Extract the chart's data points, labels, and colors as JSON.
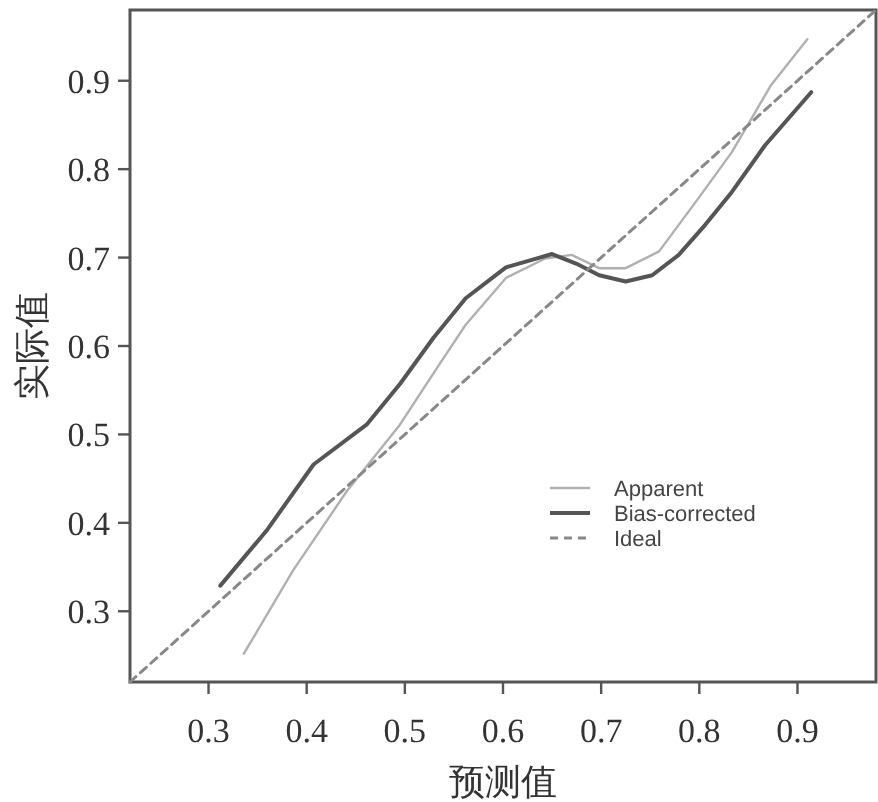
{
  "chart_data": {
    "type": "line",
    "xlabel": "预测值",
    "ylabel": "实际值",
    "xlim": [
      0.22,
      0.98
    ],
    "ylim": [
      0.22,
      0.98
    ],
    "xticks": [
      0.3,
      0.4,
      0.5,
      0.6,
      0.7,
      0.8,
      0.9
    ],
    "yticks": [
      0.3,
      0.4,
      0.5,
      0.6,
      0.7,
      0.8,
      0.9
    ],
    "legend": "right",
    "grid": false,
    "series": [
      {
        "name": "Apparent",
        "color": "#b0b0b0",
        "line_style": "solid",
        "x": [
          0.336,
          0.386,
          0.441,
          0.495,
          0.535,
          0.562,
          0.603,
          0.643,
          0.67,
          0.698,
          0.725,
          0.759,
          0.799,
          0.833,
          0.873,
          0.91
        ],
        "values": [
          0.252,
          0.346,
          0.436,
          0.511,
          0.579,
          0.624,
          0.677,
          0.699,
          0.703,
          0.688,
          0.688,
          0.707,
          0.767,
          0.819,
          0.895,
          0.947
        ]
      },
      {
        "name": "Bias-corrected",
        "color": "#555555",
        "line_style": "solid",
        "x": [
          0.312,
          0.359,
          0.407,
          0.461,
          0.495,
          0.529,
          0.562,
          0.603,
          0.65,
          0.677,
          0.698,
          0.725,
          0.752,
          0.779,
          0.806,
          0.833,
          0.867,
          0.914
        ],
        "values": [
          0.329,
          0.391,
          0.466,
          0.511,
          0.557,
          0.609,
          0.654,
          0.689,
          0.704,
          0.692,
          0.68,
          0.673,
          0.68,
          0.703,
          0.737,
          0.774,
          0.827,
          0.887
        ]
      },
      {
        "name": "Ideal",
        "color": "#888888",
        "line_style": "dashed",
        "x": [
          0.22,
          0.98
        ],
        "values": [
          0.22,
          0.98
        ]
      }
    ]
  }
}
